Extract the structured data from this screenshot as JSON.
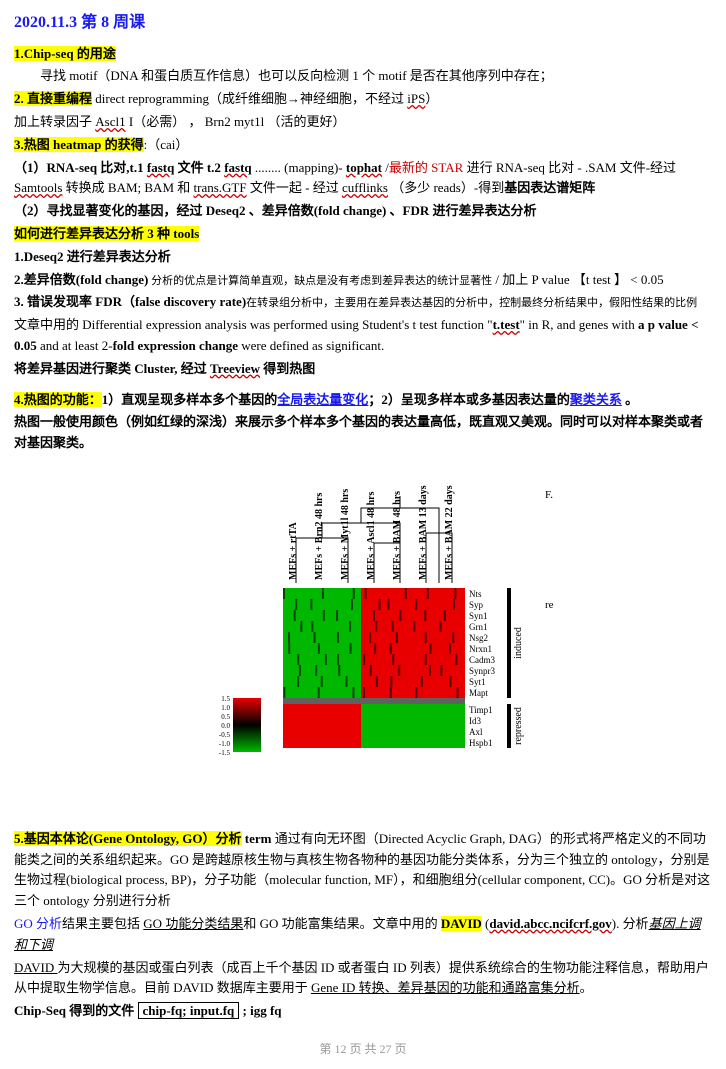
{
  "title": "2020.11.3  第 8 周课",
  "s1_head": "1.Chip-seq 的用途",
  "s1_line1": "寻找 motif（DNA 和蛋白质互作信息）也可以反向检测 1 个 motif 是否在其他序列中存在；",
  "s2_head": "2.  直接重编程",
  "s2_after": " direct reprogramming（成纤维细胞→神经细胞，不经过 ",
  "s2_ips": "iPS",
  "s2_end": "）",
  "s2_line2a": "        加上转录因子 ",
  "s2_ascl1": "Ascl1",
  "s2_line2b": " I（必需） ，   Brn2    myt1l （活的更好）",
  "s3_head": "3.热图  heatmap  的获得",
  "s3_after": ":（cai）",
  "s3_1a": "（1）RNA-seq 比对,t.1 ",
  "s3_fastq1": "fastq",
  "s3_1b": " 文件  t.2 ",
  "s3_fastq2": "fastq",
  "s3_1c": " ........    (mapping)-   ",
  "s3_tophat": "tophat",
  "s3_1d": " /",
  "s3_star": "最新的 STAR",
  "s3_1e": "   进行 RNA-seq 比对  - .SAM 文件-经过 ",
  "s3_samtools": "Samtools",
  "s3_1f": " 转换成 BAM;   BAM 和 ",
  "s3_trans": "trans.GTF",
  "s3_1g": " 文件一起  -  经过 ",
  "s3_cufflinks": "cufflinks",
  "s3_1h": "  （多少 reads）-得到",
  "s3_gene": "基因表达谱矩阵",
  "s3_2": "（2）寻找显著变化的基因，经过 Deseq2 、差异倍数(fold change)  、FDR 进行差异表达分析",
  "s3_tools": "如何进行差异表达分析 3 种 tools",
  "s3_t1": "1.Deseq2  进行差异表达分析",
  "s3_t2a": "2.差异倍数(fold change)",
  "s3_t2b": "  分析的优点是计算简单直观，缺点是没有考虑到差异表达的统计显著性",
  "s3_t2c": " /    加上 P value     【t test   】   < 0.05",
  "s3_t3a": "3.  错误发现率 FDR（false discovery rate)",
  "s3_t3b": "在转录组分析中，主要用在差异表达基因的分析中，控制最终分析结果中，假阳性结果的比例",
  "s3_txt1": "文章中用的 Differential expression analysis was performed using Student's t test function  \"",
  "s3_ttest": "t.test",
  "s3_txt2": "\"  in R,  and genes with ",
  "s3_pval": "a p value < 0.05",
  "s3_txt3": " and at least 2-",
  "s3_fold": "fold expression change",
  "s3_txt4": " were defined as significant.",
  "s3_cluster1": "将差异基因进行聚类 Cluster,  经过 ",
  "s3_treeview": "Treeview",
  "s3_cluster2": "  得到热图",
  "s4_head": "4.热图的功能：",
  "s4_1a": "1）",
  "s4_1b": "直观呈现多样本多个基因的",
  "s4_1link": "全局表达量变化",
  "s4_2a": "；2）呈现多样本或多基因表达量的",
  "s4_2link": "聚类关系",
  "s4_2end": "  。",
  "s4_desc": "热图一般使用颜色（例如红绿的深浅）来展示多个样本多个基因的表达量高低，既直观又美观。同时可以对样本聚类或者对基因聚类。",
  "heatmap": {
    "columns": [
      "MEFs + rtTA",
      "MEFs + Brn2 48 hrs",
      "MEFs + Myt1l 48 hrs",
      "MEFs + Ascl1 48 hrs",
      "MEFs + BAM 48 hrs",
      "MEFs + BAM 13 days",
      "MEFs + BAM 22 days"
    ],
    "genes_induced": [
      "Nts",
      "Syp",
      "Syn1",
      "Grn1",
      "Nsg2",
      "Nrxn1",
      "Cadm3",
      "Synpr3",
      "Syt1",
      "Mapt"
    ],
    "genes_repressed": [
      "Timp1",
      "Id3",
      "Axl",
      "Hspb1"
    ],
    "side_labels": [
      "induced",
      "repressed"
    ],
    "colors": {
      "neg": "#00b800",
      "zero": "#000000",
      "pos": "#e80000",
      "gap": "#606060"
    },
    "legend": [
      "1.5",
      "1.0",
      "0.5",
      "0.0",
      "-0.5",
      "-1.0",
      "-1.5"
    ],
    "annos": [
      "F.",
      "re"
    ]
  },
  "s5_head": "5.基因本体论(Gene Ontology, GO）分析",
  "s5_term": "  term ",
  "s5_txt1": "通过有向无环图（Directed Acyclic Graph, DAG）的形式将严格定义的不同功能类之间的关系组织起来。GO 是跨越原核生物与真核生物各物种的基因功能分类体系，分为三个独立的 ontology，分别是生物过程(biological process, BP)，分子功能（molecular function, MF），和细胞组分(cellular component, CC)。GO 分析是对这三个 ontology 分别进行分析",
  "s5_go1": "GO 分析",
  "s5_txt2": "结果主要包括 ",
  "s5_go2": "GO 功能分类结果",
  "s5_txt3": "和 GO 功能富集结果。文章中用的  ",
  "s5_david": "DAVID",
  "s5_txt4": " (",
  "s5_davidurl": "david.abcc.ncifcrf.gov",
  "s5_txt5": ").    分析",
  "s5_updown": "基因上调  和下调",
  "s5_david2": "DAVID ",
  "s5_txt6": "为大规模的基因或蛋白列表（成百上千个基因 ID 或者蛋白 ID 列表）提供系统综合的生物功能注释信息，帮助用户从中提取生物学信息。目前 DAVID 数据库主要用于 ",
  "s5_geneid": "Gene ID 转换、差异基因的功能和通路富集分析",
  "s5_txt7": "。",
  "chip_lbl": "Chip-Seq 得到的文件   ",
  "chip_box": "chip-fq; input.fq",
  "chip_after": " ; igg fq",
  "footer": "第 12 页 共 27 页"
}
